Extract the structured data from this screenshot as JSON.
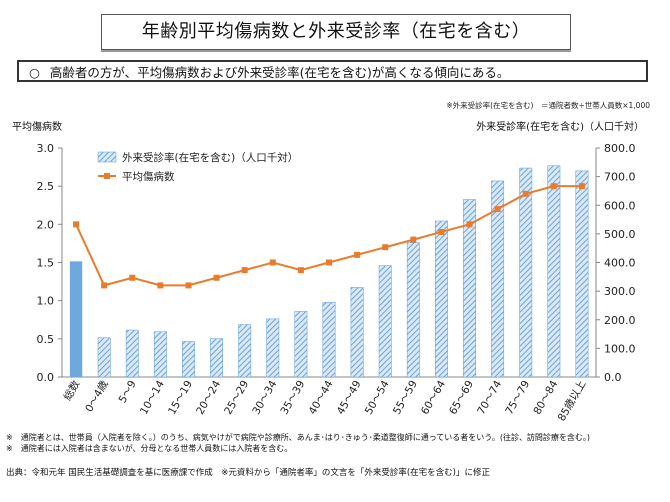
{
  "title": "年齢別平均傷病数と外来受診率（在宅を含む）",
  "summary": {
    "bullet": "○",
    "text": "高齢者の方が、平均傷病数および外来受診率(在宅を含む)が高くなる傾向にある。"
  },
  "formula_note": "※外来受診率(在宅を含む)　＝通院者数÷世帯人員数×1,000",
  "footnotes": [
    "※　通院者とは、世帯員（入院者を除く。）のうち、病気やけがで病院や診療所、あんま･はり･きゅう･柔道整復師に通っている者をいう。(往診、訪問診療を含む。)",
    "※　通院者には入院者は含まないが、分母となる世帯人員数には入院者を含む。"
  ],
  "source": "出典：令和元年 国民生活基礎調査を基に医療課で作成　※元資料から「通院者率」の文言を「外来受診率(在宅を含む)」に修正",
  "chart_data": {
    "type": "bar",
    "ylabel": "平均傷病数",
    "y2label": "外来受診率(在宅を含む)（人口千対）",
    "ylim": [
      0,
      3.0
    ],
    "y2lim": [
      0,
      800
    ],
    "yticks": [
      "3.0",
      "2.5",
      "2.0",
      "1.5",
      "1.0",
      "0.5",
      "0.0"
    ],
    "y2ticks": [
      "800.0",
      "700.0",
      "600.0",
      "500.0",
      "400.0",
      "300.0",
      "200.0",
      "100.0",
      "0.0"
    ],
    "categories": [
      "総数",
      "0～4歳",
      "5～9",
      "10～14",
      "15～19",
      "20～24",
      "25～29",
      "30～34",
      "35～39",
      "40～44",
      "45～49",
      "50～54",
      "55～59",
      "60～64",
      "65～69",
      "70～74",
      "75～79",
      "80～84",
      "85歳以上"
    ],
    "series": [
      {
        "name": "外来受診率(在宅を含む)（人口千対）",
        "type": "bar",
        "axis": "right",
        "values": [
          404,
          137,
          164,
          158,
          124,
          134,
          183,
          203,
          229,
          261,
          313,
          389,
          469,
          545,
          620,
          685,
          730,
          738,
          720
        ],
        "color": "#6fa8dc"
      },
      {
        "name": "平均傷病数",
        "type": "line",
        "axis": "left",
        "values": [
          2.0,
          1.2,
          1.3,
          1.2,
          1.2,
          1.3,
          1.4,
          1.5,
          1.4,
          1.5,
          1.6,
          1.7,
          1.8,
          1.9,
          2.0,
          2.2,
          2.4,
          2.5,
          2.5
        ],
        "color": "#e97c2c"
      }
    ],
    "legend_position": "top-left"
  }
}
